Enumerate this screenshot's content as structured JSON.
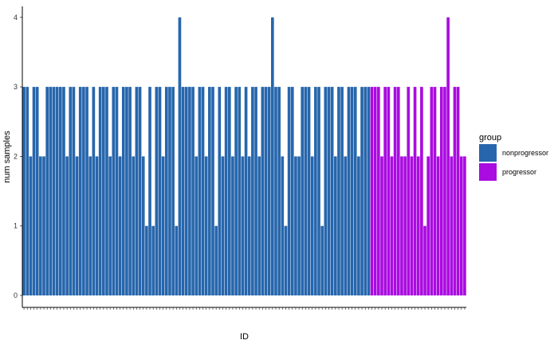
{
  "chart_data": {
    "type": "bar",
    "title": "",
    "xlabel": "ID",
    "ylabel": "num samples",
    "ylim": [
      0,
      4.2
    ],
    "yticks": [
      0,
      1,
      2,
      3,
      4
    ],
    "grid": false,
    "legend": {
      "title": "group",
      "placement": "right",
      "entries": [
        "nonprogressor",
        "progressor"
      ]
    },
    "colors": {
      "nonprogressor": "#2766ac",
      "progressor": "#aa0be0"
    },
    "bars": [
      {
        "group": "nonprogressor",
        "value": 3
      },
      {
        "group": "nonprogressor",
        "value": 3
      },
      {
        "group": "nonprogressor",
        "value": 2
      },
      {
        "group": "nonprogressor",
        "value": 3
      },
      {
        "group": "nonprogressor",
        "value": 3
      },
      {
        "group": "nonprogressor",
        "value": 2
      },
      {
        "group": "nonprogressor",
        "value": 2
      },
      {
        "group": "nonprogressor",
        "value": 3
      },
      {
        "group": "nonprogressor",
        "value": 3
      },
      {
        "group": "nonprogressor",
        "value": 3
      },
      {
        "group": "nonprogressor",
        "value": 3
      },
      {
        "group": "nonprogressor",
        "value": 3
      },
      {
        "group": "nonprogressor",
        "value": 3
      },
      {
        "group": "nonprogressor",
        "value": 2
      },
      {
        "group": "nonprogressor",
        "value": 3
      },
      {
        "group": "nonprogressor",
        "value": 3
      },
      {
        "group": "nonprogressor",
        "value": 2
      },
      {
        "group": "nonprogressor",
        "value": 3
      },
      {
        "group": "nonprogressor",
        "value": 3
      },
      {
        "group": "nonprogressor",
        "value": 3
      },
      {
        "group": "nonprogressor",
        "value": 2
      },
      {
        "group": "nonprogressor",
        "value": 3
      },
      {
        "group": "nonprogressor",
        "value": 2
      },
      {
        "group": "nonprogressor",
        "value": 3
      },
      {
        "group": "nonprogressor",
        "value": 3
      },
      {
        "group": "nonprogressor",
        "value": 3
      },
      {
        "group": "nonprogressor",
        "value": 2
      },
      {
        "group": "nonprogressor",
        "value": 3
      },
      {
        "group": "nonprogressor",
        "value": 3
      },
      {
        "group": "nonprogressor",
        "value": 2
      },
      {
        "group": "nonprogressor",
        "value": 3
      },
      {
        "group": "nonprogressor",
        "value": 3
      },
      {
        "group": "nonprogressor",
        "value": 3
      },
      {
        "group": "nonprogressor",
        "value": 2
      },
      {
        "group": "nonprogressor",
        "value": 3
      },
      {
        "group": "nonprogressor",
        "value": 3
      },
      {
        "group": "nonprogressor",
        "value": 2
      },
      {
        "group": "nonprogressor",
        "value": 1
      },
      {
        "group": "nonprogressor",
        "value": 3
      },
      {
        "group": "nonprogressor",
        "value": 1
      },
      {
        "group": "nonprogressor",
        "value": 3
      },
      {
        "group": "nonprogressor",
        "value": 3
      },
      {
        "group": "nonprogressor",
        "value": 2
      },
      {
        "group": "nonprogressor",
        "value": 3
      },
      {
        "group": "nonprogressor",
        "value": 3
      },
      {
        "group": "nonprogressor",
        "value": 3
      },
      {
        "group": "nonprogressor",
        "value": 1
      },
      {
        "group": "nonprogressor",
        "value": 4
      },
      {
        "group": "nonprogressor",
        "value": 3
      },
      {
        "group": "nonprogressor",
        "value": 3
      },
      {
        "group": "nonprogressor",
        "value": 3
      },
      {
        "group": "nonprogressor",
        "value": 3
      },
      {
        "group": "nonprogressor",
        "value": 2
      },
      {
        "group": "nonprogressor",
        "value": 3
      },
      {
        "group": "nonprogressor",
        "value": 3
      },
      {
        "group": "nonprogressor",
        "value": 2
      },
      {
        "group": "nonprogressor",
        "value": 3
      },
      {
        "group": "nonprogressor",
        "value": 3
      },
      {
        "group": "nonprogressor",
        "value": 1
      },
      {
        "group": "nonprogressor",
        "value": 3
      },
      {
        "group": "nonprogressor",
        "value": 2
      },
      {
        "group": "nonprogressor",
        "value": 3
      },
      {
        "group": "nonprogressor",
        "value": 3
      },
      {
        "group": "nonprogressor",
        "value": 2
      },
      {
        "group": "nonprogressor",
        "value": 3
      },
      {
        "group": "nonprogressor",
        "value": 3
      },
      {
        "group": "nonprogressor",
        "value": 2
      },
      {
        "group": "nonprogressor",
        "value": 3
      },
      {
        "group": "nonprogressor",
        "value": 2
      },
      {
        "group": "nonprogressor",
        "value": 3
      },
      {
        "group": "nonprogressor",
        "value": 3
      },
      {
        "group": "nonprogressor",
        "value": 2
      },
      {
        "group": "nonprogressor",
        "value": 3
      },
      {
        "group": "nonprogressor",
        "value": 3
      },
      {
        "group": "nonprogressor",
        "value": 3
      },
      {
        "group": "nonprogressor",
        "value": 4
      },
      {
        "group": "nonprogressor",
        "value": 3
      },
      {
        "group": "nonprogressor",
        "value": 3
      },
      {
        "group": "nonprogressor",
        "value": 2
      },
      {
        "group": "nonprogressor",
        "value": 1
      },
      {
        "group": "nonprogressor",
        "value": 3
      },
      {
        "group": "nonprogressor",
        "value": 3
      },
      {
        "group": "nonprogressor",
        "value": 2
      },
      {
        "group": "nonprogressor",
        "value": 2
      },
      {
        "group": "nonprogressor",
        "value": 3
      },
      {
        "group": "nonprogressor",
        "value": 3
      },
      {
        "group": "nonprogressor",
        "value": 3
      },
      {
        "group": "nonprogressor",
        "value": 2
      },
      {
        "group": "nonprogressor",
        "value": 3
      },
      {
        "group": "nonprogressor",
        "value": 3
      },
      {
        "group": "nonprogressor",
        "value": 1
      },
      {
        "group": "nonprogressor",
        "value": 3
      },
      {
        "group": "nonprogressor",
        "value": 3
      },
      {
        "group": "nonprogressor",
        "value": 3
      },
      {
        "group": "nonprogressor",
        "value": 2
      },
      {
        "group": "nonprogressor",
        "value": 3
      },
      {
        "group": "nonprogressor",
        "value": 3
      },
      {
        "group": "nonprogressor",
        "value": 2
      },
      {
        "group": "nonprogressor",
        "value": 3
      },
      {
        "group": "nonprogressor",
        "value": 3
      },
      {
        "group": "nonprogressor",
        "value": 3
      },
      {
        "group": "nonprogressor",
        "value": 2
      },
      {
        "group": "nonprogressor",
        "value": 3
      },
      {
        "group": "nonprogressor",
        "value": 3
      },
      {
        "group": "nonprogressor",
        "value": 3
      },
      {
        "group": "progressor",
        "value": 3
      },
      {
        "group": "progressor",
        "value": 3
      },
      {
        "group": "progressor",
        "value": 3
      },
      {
        "group": "progressor",
        "value": 2
      },
      {
        "group": "progressor",
        "value": 3
      },
      {
        "group": "progressor",
        "value": 3
      },
      {
        "group": "progressor",
        "value": 2
      },
      {
        "group": "progressor",
        "value": 3
      },
      {
        "group": "progressor",
        "value": 3
      },
      {
        "group": "progressor",
        "value": 2
      },
      {
        "group": "progressor",
        "value": 2
      },
      {
        "group": "progressor",
        "value": 3
      },
      {
        "group": "progressor",
        "value": 2
      },
      {
        "group": "progressor",
        "value": 3
      },
      {
        "group": "progressor",
        "value": 2
      },
      {
        "group": "progressor",
        "value": 3
      },
      {
        "group": "progressor",
        "value": 1
      },
      {
        "group": "progressor",
        "value": 2
      },
      {
        "group": "progressor",
        "value": 3
      },
      {
        "group": "progressor",
        "value": 3
      },
      {
        "group": "progressor",
        "value": 2
      },
      {
        "group": "progressor",
        "value": 3
      },
      {
        "group": "progressor",
        "value": 3
      },
      {
        "group": "progressor",
        "value": 4
      },
      {
        "group": "progressor",
        "value": 2
      },
      {
        "group": "progressor",
        "value": 3
      },
      {
        "group": "progressor",
        "value": 3
      },
      {
        "group": "progressor",
        "value": 2
      },
      {
        "group": "progressor",
        "value": 2
      }
    ]
  }
}
